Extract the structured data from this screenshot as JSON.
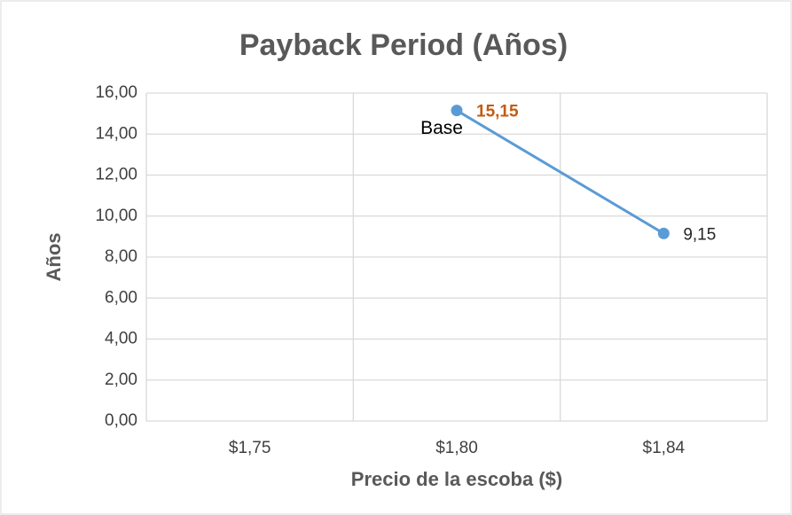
{
  "chart_data": {
    "type": "line",
    "title": "Payback Period (Años)",
    "x_label": "Precio de la escoba ($)",
    "y_label": "Años",
    "categories": [
      "$1,75",
      "$1,80",
      "$1,84"
    ],
    "values": [
      null,
      15.15,
      9.15
    ],
    "value_labels": [
      null,
      "15,15",
      "9,15"
    ],
    "value_label_colors": [
      null,
      "#c55a11",
      "#262626"
    ],
    "annotation": "Base",
    "color": "#5b9bd5",
    "ylim": [
      0,
      16
    ],
    "yticks": [
      {
        "value": 0,
        "label": "0,00"
      },
      {
        "value": 2,
        "label": "2,00"
      },
      {
        "value": 4,
        "label": "4,00"
      },
      {
        "value": 6,
        "label": "6,00"
      },
      {
        "value": 8,
        "label": "8,00"
      },
      {
        "value": 10,
        "label": "10,00"
      },
      {
        "value": 12,
        "label": "12,00"
      },
      {
        "value": 14,
        "label": "14,00"
      },
      {
        "value": 16,
        "label": "16,00"
      }
    ],
    "grid": true
  }
}
